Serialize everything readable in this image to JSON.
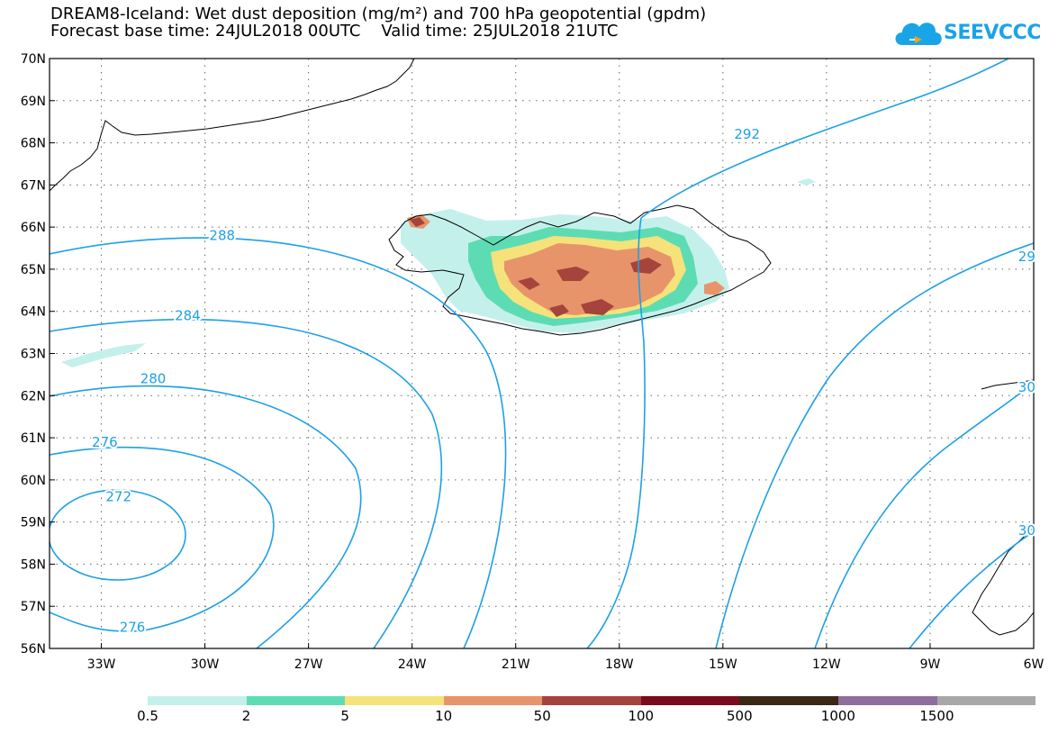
{
  "title_line1": "DREAM8-Iceland: Wet dust deposition (mg/m²) and 700 hPa geopotential (gpdm)",
  "title_line2": "Forecast base time: 24JUL2018 00UTC    Valid time: 25JUL2018 21UTC",
  "logo_text": "SEEVCCC",
  "map": {
    "lon_range": [
      -34.5,
      -6
    ],
    "lat_range": [
      56,
      70
    ],
    "lon_ticks": [
      {
        "value": -33,
        "label": "33W"
      },
      {
        "value": -30,
        "label": "30W"
      },
      {
        "value": -27,
        "label": "27W"
      },
      {
        "value": -24,
        "label": "24W"
      },
      {
        "value": -21,
        "label": "21W"
      },
      {
        "value": -18,
        "label": "18W"
      },
      {
        "value": -15,
        "label": "15W"
      },
      {
        "value": -12,
        "label": "12W"
      },
      {
        "value": -9,
        "label": "9W"
      },
      {
        "value": -6,
        "label": "6W"
      }
    ],
    "lat_ticks": [
      {
        "value": 70,
        "label": "70N"
      },
      {
        "value": 69,
        "label": "69N"
      },
      {
        "value": 68,
        "label": "68N"
      },
      {
        "value": 67,
        "label": "67N"
      },
      {
        "value": 66,
        "label": "66N"
      },
      {
        "value": 65,
        "label": "65N"
      },
      {
        "value": 64,
        "label": "64N"
      },
      {
        "value": 63,
        "label": "63N"
      },
      {
        "value": 62,
        "label": "62N"
      },
      {
        "value": 61,
        "label": "61N"
      },
      {
        "value": 60,
        "label": "60N"
      },
      {
        "value": 59,
        "label": "59N"
      },
      {
        "value": 58,
        "label": "58N"
      },
      {
        "value": 57,
        "label": "57N"
      },
      {
        "value": 56,
        "label": "56N"
      }
    ],
    "contour_color": "#1ea0e6",
    "contour_labels": [
      {
        "label": "272",
        "lon": -32.5,
        "lat": 59.6
      },
      {
        "label": "276",
        "lon": -32.9,
        "lat": 60.9
      },
      {
        "label": "276",
        "lon": -32.1,
        "lat": 56.5
      },
      {
        "label": "280",
        "lon": -31.5,
        "lat": 62.4
      },
      {
        "label": "284",
        "lon": -30.5,
        "lat": 63.9
      },
      {
        "label": "288",
        "lon": -29.5,
        "lat": 65.8
      },
      {
        "label": "292",
        "lon": -14.3,
        "lat": 68.2
      },
      {
        "label": "29",
        "lon": -6.2,
        "lat": 65.3
      },
      {
        "label": "30",
        "lon": -6.2,
        "lat": 62.2
      },
      {
        "label": "30",
        "lon": -6.2,
        "lat": 58.8
      }
    ]
  },
  "colorbar": {
    "colors": [
      "#c4f0ec",
      "#5ddcb4",
      "#f6e27a",
      "#e8946a",
      "#a5443c",
      "#7a0a1e",
      "#3a2814",
      "#8e6e9c",
      "#a8a8a8"
    ],
    "labels": [
      "0.5",
      "2",
      "5",
      "10",
      "50",
      "100",
      "500",
      "1000",
      "1500"
    ]
  }
}
